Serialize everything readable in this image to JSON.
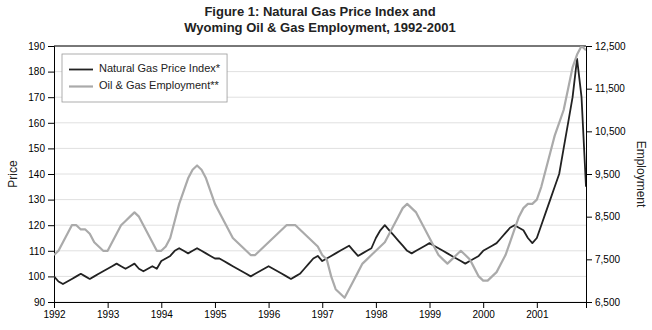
{
  "chart_data": {
    "type": "line",
    "title": "Figure 1: Natural Gas Price Index and\nWyoming Oil & Gas Employment, 1992-2001",
    "ylabel": "Price",
    "y2label": "Employment",
    "x": [
      1992,
      1992.0833333333333,
      1992.1666666666667,
      1992.25,
      1992.3333333333333,
      1992.4166666666667,
      1992.5,
      1992.5833333333333,
      1992.6666666666667,
      1992.75,
      1992.8333333333333,
      1992.9166666666667,
      1993,
      1993.0833333333333,
      1993.1666666666667,
      1993.25,
      1993.3333333333333,
      1993.4166666666667,
      1993.5,
      1993.5833333333333,
      1993.6666666666667,
      1993.75,
      1993.8333333333333,
      1993.9166666666667,
      1994,
      1994.0833333333333,
      1994.1666666666667,
      1994.25,
      1994.3333333333333,
      1994.4166666666667,
      1994.5,
      1994.5833333333333,
      1994.6666666666667,
      1994.75,
      1994.8333333333333,
      1994.9166666666667,
      1995,
      1995.0833333333333,
      1995.1666666666667,
      1995.25,
      1995.3333333333333,
      1995.4166666666667,
      1995.5,
      1995.5833333333333,
      1995.6666666666667,
      1995.75,
      1995.8333333333333,
      1995.9166666666667,
      1996,
      1996.0833333333333,
      1996.1666666666667,
      1996.25,
      1996.3333333333333,
      1996.4166666666667,
      1996.5,
      1996.5833333333333,
      1996.6666666666667,
      1996.75,
      1996.8333333333333,
      1996.9166666666667,
      1997,
      1997.0833333333333,
      1997.1666666666667,
      1997.25,
      1997.3333333333333,
      1997.4166666666667,
      1997.5,
      1997.5833333333333,
      1997.6666666666667,
      1997.75,
      1997.8333333333333,
      1997.9166666666667,
      1998,
      1998.0833333333333,
      1998.1666666666667,
      1998.25,
      1998.3333333333333,
      1998.4166666666667,
      1998.5,
      1998.5833333333333,
      1998.6666666666667,
      1998.75,
      1998.8333333333333,
      1998.9166666666667,
      1999,
      1999.0833333333333,
      1999.1666666666667,
      1999.25,
      1999.3333333333333,
      1999.4166666666667,
      1999.5,
      1999.5833333333333,
      1999.6666666666667,
      1999.75,
      1999.8333333333333,
      1999.9166666666667,
      2000,
      2000.0833333333333,
      2000.1666666666667,
      2000.25,
      2000.3333333333333,
      2000.4166666666667,
      2000.5,
      2000.5833333333333,
      2000.6666666666667,
      2000.75,
      2000.8333333333333,
      2000.9166666666667,
      2001,
      2001.0833333333333,
      2001.1666666666667,
      2001.25,
      2001.3333333333333,
      2001.4166666666667,
      2001.5,
      2001.5833333333333,
      2001.6666666666667,
      2001.75,
      2001.8333333333333,
      2001.9166666666667
    ],
    "xlim": [
      1992,
      2001.9166666666667
    ],
    "xticks": [
      1992,
      1993,
      1994,
      1995,
      1996,
      1997,
      1998,
      1999,
      2000,
      2001
    ],
    "ylim": [
      90,
      190
    ],
    "yticks": [
      90,
      100,
      110,
      120,
      130,
      140,
      150,
      160,
      170,
      180,
      190
    ],
    "y2lim": [
      6500,
      12500
    ],
    "y2ticks": [
      {
        "value": 6500,
        "label": "6,500"
      },
      {
        "value": 7500,
        "label": "7,500"
      },
      {
        "value": 8500,
        "label": "8,500"
      },
      {
        "value": 9500,
        "label": "9,500"
      },
      {
        "value": 10500,
        "label": "10,500"
      },
      {
        "value": 11500,
        "label": "11,500"
      },
      {
        "value": 12500,
        "label": "12,500"
      }
    ],
    "grid": true,
    "legend": "upper left",
    "series": [
      {
        "name": "Natural Gas Price Index*",
        "color": "#222222",
        "axis": "y",
        "values": [
          100,
          98,
          97,
          98,
          99,
          100,
          101,
          100,
          99,
          100,
          101,
          102,
          103,
          104,
          105,
          104,
          103,
          104,
          105,
          103,
          102,
          103,
          104,
          103,
          106,
          107,
          108,
          110,
          111,
          110,
          109,
          110,
          111,
          110,
          109,
          108,
          107,
          107,
          106,
          105,
          104,
          103,
          102,
          101,
          100,
          101,
          102,
          103,
          104,
          103,
          102,
          101,
          100,
          99,
          100,
          101,
          103,
          105,
          107,
          108,
          106,
          107,
          108,
          109,
          110,
          111,
          112,
          110,
          108,
          109,
          110,
          111,
          115,
          118,
          120,
          118,
          116,
          114,
          112,
          110,
          109,
          110,
          111,
          112,
          113,
          112,
          111,
          110,
          109,
          108,
          107,
          106,
          105,
          106,
          107,
          108,
          110,
          111,
          112,
          113,
          115,
          117,
          119,
          120,
          119,
          118,
          115,
          113,
          115,
          120,
          125,
          130,
          135,
          140,
          150,
          160,
          170,
          185,
          170,
          135
        ]
      },
      {
        "name": "Oil & Gas Employment**",
        "color": "#aaaaaa",
        "axis": "y2",
        "values": [
          7600,
          7700,
          7900,
          8100,
          8300,
          8300,
          8200,
          8200,
          8100,
          7900,
          7800,
          7700,
          7700,
          7900,
          8100,
          8300,
          8400,
          8500,
          8600,
          8500,
          8300,
          8100,
          7900,
          7700,
          7700,
          7800,
          8000,
          8400,
          8800,
          9100,
          9400,
          9600,
          9700,
          9600,
          9400,
          9100,
          8800,
          8600,
          8400,
          8200,
          8000,
          7900,
          7800,
          7700,
          7600,
          7600,
          7700,
          7800,
          7900,
          8000,
          8100,
          8200,
          8300,
          8300,
          8300,
          8200,
          8100,
          8000,
          7900,
          7800,
          7600,
          7500,
          7100,
          6800,
          6700,
          6600,
          6800,
          7000,
          7200,
          7400,
          7500,
          7600,
          7700,
          7800,
          7900,
          8100,
          8300,
          8500,
          8700,
          8800,
          8700,
          8600,
          8400,
          8200,
          8000,
          7800,
          7600,
          7500,
          7400,
          7500,
          7600,
          7700,
          7600,
          7500,
          7300,
          7100,
          7000,
          7000,
          7100,
          7200,
          7400,
          7600,
          7900,
          8200,
          8500,
          8700,
          8800,
          8800,
          8900,
          9200,
          9600,
          10000,
          10400,
          10700,
          11000,
          11500,
          12000,
          12300,
          12500,
          12400
        ]
      }
    ]
  }
}
